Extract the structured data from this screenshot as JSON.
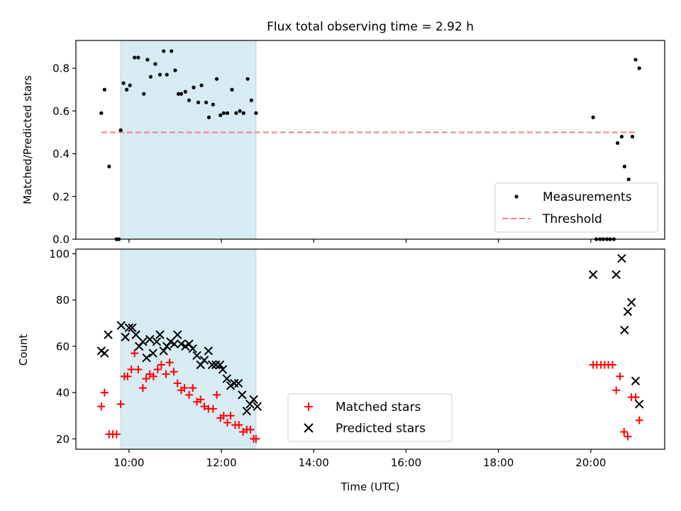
{
  "chart_data": [
    {
      "type": "scatter",
      "title": "Flux total observing time = 2.92 h",
      "xlabel": "",
      "ylabel": "Matched/Predicted stars",
      "xlim": [
        8.85,
        21.6
      ],
      "ylim": [
        0,
        0.93
      ],
      "yticks": [
        0.0,
        0.2,
        0.4,
        0.6,
        0.8
      ],
      "ytick_labels": [
        "0.0",
        "0.2",
        "0.4",
        "0.6",
        "0.8"
      ],
      "shaded_x_range": [
        9.82,
        12.75
      ],
      "legend_position": "lower-right",
      "threshold": {
        "name": "Threshold",
        "y": 0.5,
        "x_range": [
          9.4,
          21.0
        ],
        "color": "#f08080"
      },
      "series": [
        {
          "name": "Measurements",
          "marker": "dot",
          "color": "#000000",
          "x": [
            9.4,
            9.47,
            9.57,
            9.73,
            9.78,
            9.82,
            9.88,
            9.95,
            10.02,
            10.12,
            10.2,
            10.32,
            10.4,
            10.47,
            10.57,
            10.67,
            10.75,
            10.82,
            10.92,
            11.0,
            11.07,
            11.13,
            11.22,
            11.3,
            11.4,
            11.5,
            11.57,
            11.67,
            11.73,
            11.82,
            11.9,
            11.98,
            12.05,
            12.13,
            12.23,
            12.32,
            12.4,
            12.48,
            12.57,
            12.65,
            12.75,
            20.05,
            20.12,
            20.2,
            20.27,
            20.35,
            20.42,
            20.5,
            20.58,
            20.67,
            20.73,
            20.82,
            20.9,
            20.97,
            21.05
          ],
          "y": [
            0.59,
            0.7,
            0.34,
            0.0,
            0.0,
            0.51,
            0.73,
            0.7,
            0.72,
            0.85,
            0.85,
            0.68,
            0.84,
            0.76,
            0.82,
            0.77,
            0.88,
            0.77,
            0.88,
            0.79,
            0.68,
            0.68,
            0.69,
            0.65,
            0.71,
            0.64,
            0.72,
            0.64,
            0.57,
            0.63,
            0.75,
            0.58,
            0.59,
            0.59,
            0.7,
            0.59,
            0.6,
            0.59,
            0.75,
            0.65,
            0.59,
            0.57,
            0.0,
            0.0,
            0.0,
            0.0,
            0.0,
            0.0,
            0.45,
            0.48,
            0.34,
            0.28,
            0.48,
            0.84,
            0.8
          ]
        }
      ]
    },
    {
      "type": "scatter",
      "title": "",
      "xlabel": "Time (UTC)",
      "ylabel": "Count",
      "xlim": [
        8.85,
        21.6
      ],
      "ylim": [
        15.5,
        102
      ],
      "xticks": [
        10,
        12,
        14,
        16,
        18,
        20
      ],
      "xtick_labels": [
        "10:00",
        "12:00",
        "14:00",
        "16:00",
        "18:00",
        "20:00"
      ],
      "yticks": [
        20,
        40,
        60,
        80,
        100
      ],
      "ytick_labels": [
        "20",
        "40",
        "60",
        "80",
        "100"
      ],
      "shaded_x_range": [
        9.82,
        12.75
      ],
      "legend_position": "lower-center",
      "series": [
        {
          "name": "Matched stars",
          "marker": "plus",
          "color": "#ff0000",
          "x": [
            9.4,
            9.47,
            9.57,
            9.65,
            9.73,
            9.82,
            9.9,
            9.97,
            10.05,
            10.12,
            10.2,
            10.3,
            10.37,
            10.45,
            10.53,
            10.62,
            10.7,
            10.8,
            10.88,
            10.97,
            11.05,
            11.13,
            11.2,
            11.3,
            11.38,
            11.47,
            11.55,
            11.63,
            11.72,
            11.82,
            11.9,
            11.98,
            12.05,
            12.13,
            12.2,
            12.3,
            12.38,
            12.47,
            12.55,
            12.63,
            12.7,
            12.75,
            20.05,
            20.13,
            20.22,
            20.3,
            20.38,
            20.47,
            20.55,
            20.63,
            20.72,
            20.8,
            20.88,
            20.97,
            21.05
          ],
          "y": [
            34,
            40,
            22,
            22,
            22,
            35,
            47,
            47,
            50,
            57,
            50,
            42,
            46,
            48,
            47,
            50,
            52,
            48,
            53,
            49,
            44,
            41,
            42,
            39,
            42,
            36,
            37,
            34,
            33,
            33,
            39,
            29,
            30,
            27,
            30,
            26,
            26,
            23,
            24,
            24,
            20,
            20,
            52,
            52,
            52,
            52,
            52,
            52,
            41,
            47,
            23,
            21,
            38,
            38,
            28
          ]
        },
        {
          "name": "Predicted stars",
          "marker": "x",
          "color": "#000000",
          "x": [
            9.4,
            9.47,
            9.55,
            9.83,
            9.92,
            10.0,
            10.07,
            10.15,
            10.22,
            10.3,
            10.38,
            10.45,
            10.52,
            10.6,
            10.67,
            10.75,
            10.82,
            10.9,
            10.98,
            11.05,
            11.13,
            11.22,
            11.3,
            11.38,
            11.47,
            11.55,
            11.63,
            11.72,
            11.8,
            11.88,
            11.97,
            12.03,
            12.12,
            12.2,
            12.28,
            12.37,
            12.45,
            12.55,
            12.62,
            12.7,
            12.78,
            20.05,
            20.55,
            20.67,
            20.73,
            20.8,
            20.88,
            20.97,
            21.05
          ],
          "y": [
            58,
            57,
            65,
            69,
            64,
            68,
            68,
            65,
            60,
            62,
            55,
            63,
            57,
            62,
            65,
            58,
            60,
            62,
            61,
            65,
            61,
            60,
            61,
            59,
            56,
            52,
            54,
            58,
            52,
            52,
            52,
            50,
            46,
            43,
            44,
            44,
            39,
            32,
            35,
            37,
            34,
            91,
            91,
            98,
            67,
            75,
            79,
            45,
            35
          ]
        }
      ]
    }
  ]
}
